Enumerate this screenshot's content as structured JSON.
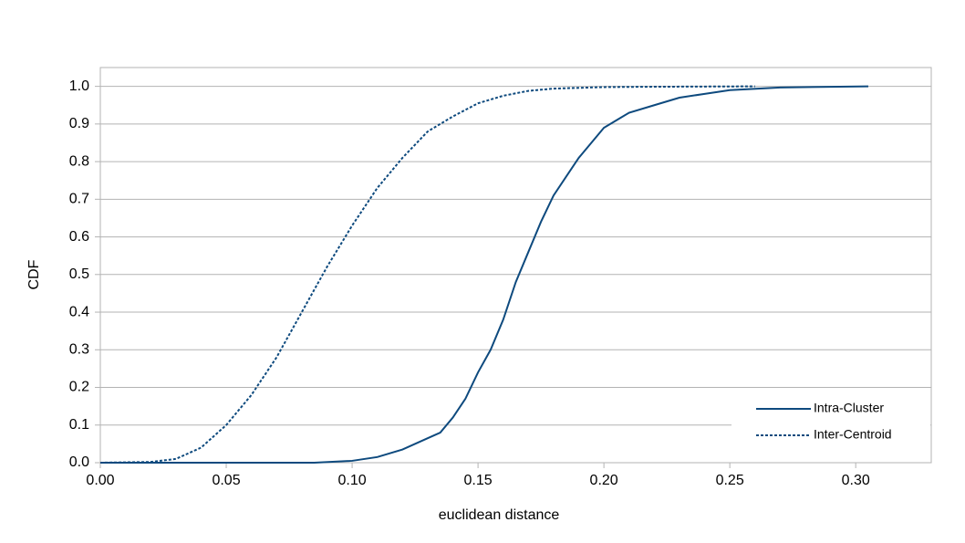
{
  "chart_data": {
    "type": "line",
    "xlabel": "euclidean distance",
    "ylabel": "CDF",
    "xlim": [
      0,
      0.33
    ],
    "ylim": [
      0,
      1.05
    ],
    "xticks": [
      {
        "value": 0,
        "label": "0.00"
      },
      0.05,
      {
        "value": 0.1,
        "label": "0.10"
      },
      0.15,
      {
        "value": 0.2,
        "label": "0.20"
      },
      0.25,
      {
        "value": 0.3,
        "label": "0.30"
      }
    ],
    "yticks": [
      {
        "value": 0,
        "label": "0.0"
      },
      0.1,
      0.2,
      0.3,
      0.4,
      0.5,
      0.6,
      0.7,
      0.8,
      0.9,
      {
        "value": 1,
        "label": "1.0"
      }
    ],
    "grid": true,
    "legend": "lower right",
    "series": [
      {
        "name": "Intra-Cluster",
        "color": "#0e4a7e",
        "linestyle": "solid",
        "x": [
          0,
          0.085,
          0.1,
          0.11,
          0.12,
          0.13,
          0.135,
          0.14,
          0.145,
          0.15,
          0.155,
          0.16,
          0.165,
          0.17,
          0.175,
          0.18,
          0.185,
          0.19,
          0.195,
          0.2,
          0.205,
          0.21,
          0.22,
          0.23,
          0.24,
          0.25,
          0.27,
          0.305
        ],
        "values": [
          0,
          0,
          0.005,
          0.015,
          0.035,
          0.065,
          0.08,
          0.12,
          0.17,
          0.24,
          0.3,
          0.38,
          0.48,
          0.56,
          0.64,
          0.71,
          0.76,
          0.81,
          0.85,
          0.89,
          0.91,
          0.93,
          0.95,
          0.97,
          0.98,
          0.99,
          0.997,
          1.0
        ]
      },
      {
        "name": "Inter-Centroid",
        "color": "#0e4a7e",
        "linestyle": "dotted",
        "x": [
          0,
          0.02,
          0.03,
          0.04,
          0.05,
          0.06,
          0.07,
          0.08,
          0.09,
          0.1,
          0.11,
          0.12,
          0.13,
          0.14,
          0.15,
          0.16,
          0.17,
          0.18,
          0.2,
          0.22,
          0.26
        ],
        "values": [
          0,
          0.002,
          0.01,
          0.04,
          0.1,
          0.18,
          0.28,
          0.4,
          0.52,
          0.63,
          0.73,
          0.81,
          0.88,
          0.92,
          0.955,
          0.975,
          0.988,
          0.994,
          0.998,
          0.999,
          1.0
        ]
      }
    ]
  }
}
